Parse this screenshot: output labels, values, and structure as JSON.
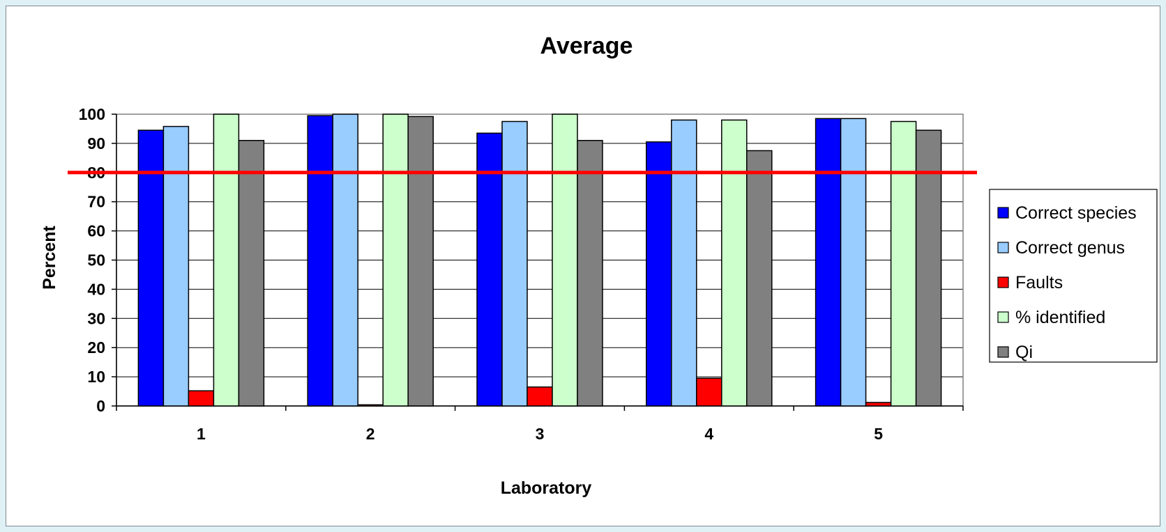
{
  "chart_data": {
    "type": "bar",
    "title": "Average",
    "xlabel": "Laboratory",
    "ylabel": "Percent",
    "categories": [
      "1",
      "2",
      "3",
      "4",
      "5"
    ],
    "ylim": [
      0,
      100
    ],
    "yticks": [
      "0",
      "10",
      "20",
      "30",
      "40",
      "50",
      "60",
      "70",
      "80",
      "90",
      "100"
    ],
    "grid": true,
    "legend_position": "right",
    "series": [
      {
        "name": "Correct species",
        "color": "#0000ff",
        "values": [
          94.5,
          99.5,
          93.5,
          90.5,
          98.5
        ]
      },
      {
        "name": "Correct genus",
        "color": "#99ccff",
        "values": [
          95.8,
          100,
          97.5,
          98,
          98.5
        ]
      },
      {
        "name": "Faults",
        "color": "#ff0000",
        "values": [
          5.2,
          0.4,
          6.5,
          9.5,
          1.2
        ]
      },
      {
        "name": "% identified",
        "color": "#ccffcc",
        "values": [
          100,
          100,
          100,
          98,
          97.5
        ]
      },
      {
        "name": "Qi",
        "color": "#808080",
        "values": [
          91,
          99.2,
          91,
          87.5,
          94.5
        ]
      }
    ],
    "reference_line": {
      "y": 80,
      "color": "#ff0000"
    }
  }
}
